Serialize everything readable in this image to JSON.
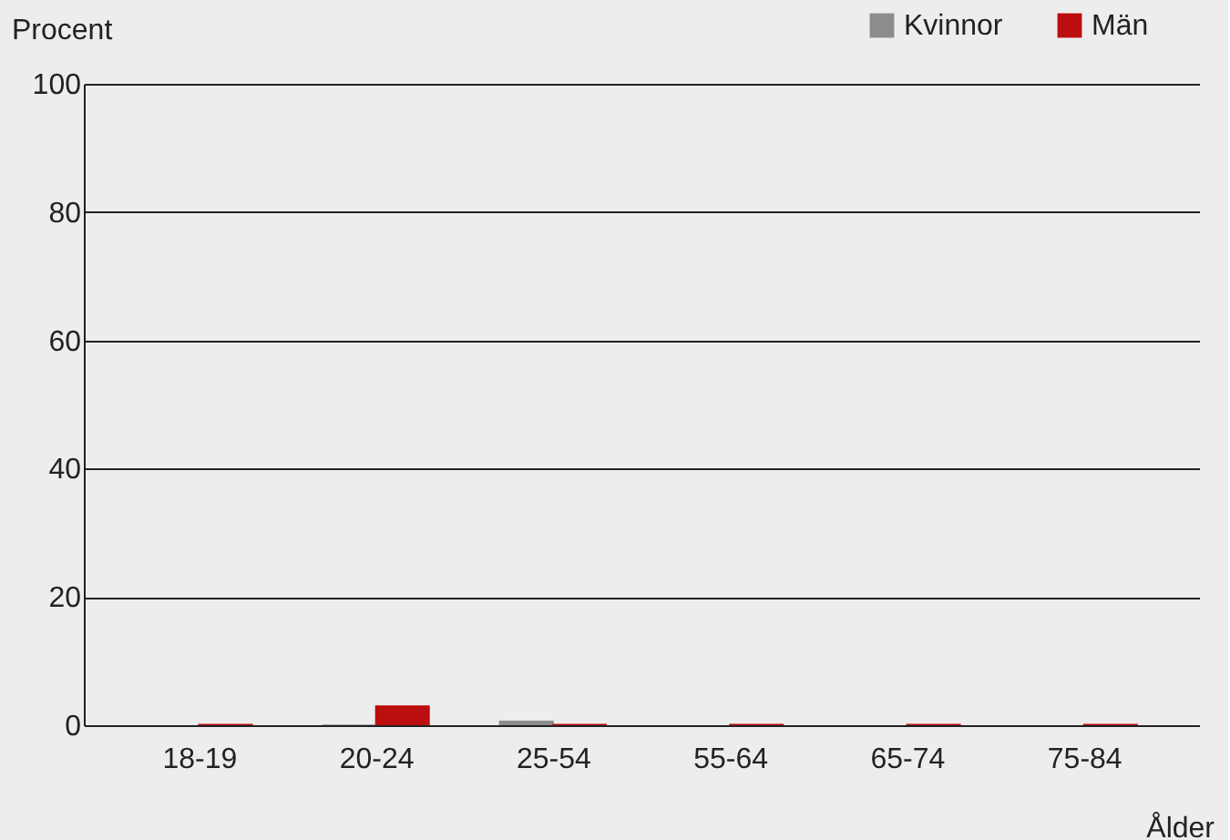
{
  "chart_data": {
    "type": "bar",
    "xlabel": "Ålder",
    "ylabel": "Procent",
    "categories": [
      "18-19",
      "20-24",
      "25-54",
      "55-64",
      "65-74",
      "75-84"
    ],
    "series": [
      {
        "name": "Kvinnor",
        "color": "#8c8c8c",
        "values": [
          0,
          0.1,
          0.7,
          0,
          0,
          0
        ]
      },
      {
        "name": "Män",
        "color": "#bb0e0e",
        "values": [
          0.2,
          3.1,
          0.2,
          0.2,
          0.2,
          0.2
        ]
      }
    ],
    "ylim": [
      0,
      100
    ],
    "yticks": [
      0,
      20,
      40,
      60,
      80,
      100
    ],
    "grid": "y",
    "legend": "top right"
  }
}
